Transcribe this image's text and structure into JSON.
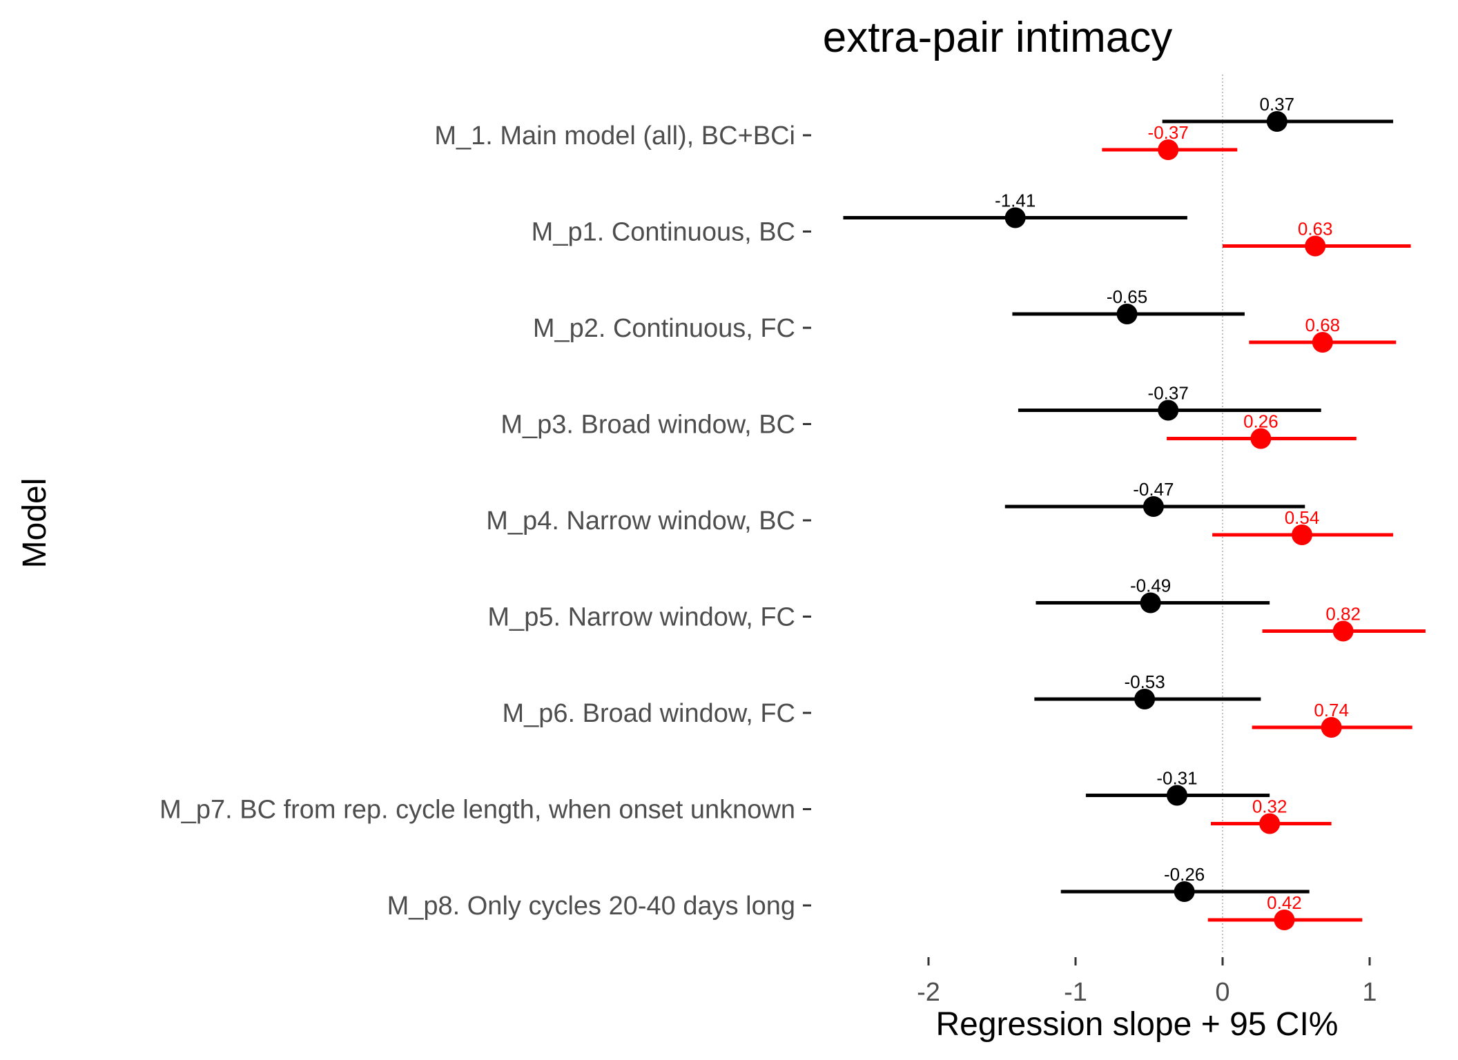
{
  "chart_data": {
    "type": "forest",
    "title": "extra-pair intimacy",
    "xlabel": "Regression slope + 95 CI%",
    "ylabel": "Model",
    "xlim": [
      -2.5,
      1.35
    ],
    "xticks": [
      -2,
      -1,
      0,
      1
    ],
    "xtick_labels": [
      "-2",
      "-1",
      "0",
      "1"
    ],
    "reference_line": 0,
    "grid": false,
    "categories": [
      "M_1. Main model (all), BC+BCi",
      "M_p1. Continuous, BC",
      "M_p2. Continuous, FC",
      "M_p3. Broad window, BC",
      "M_p4. Narrow window, BC",
      "M_p5. Narrow window, FC",
      "M_p6. Broad window, FC",
      "M_p7. BC from rep. cycle length, when onset unknown",
      "M_p8. Only cycles 20-40 days long"
    ],
    "series": [
      {
        "color": "#000000",
        "estimates": [
          0.37,
          -1.41,
          -0.65,
          -0.37,
          -0.47,
          -0.49,
          -0.53,
          -0.31,
          -0.26
        ],
        "labels": [
          "0.37",
          "-1.41",
          "-0.65",
          "-0.37",
          "-0.47",
          "-0.49",
          "-0.53",
          "-0.31",
          "-0.26"
        ],
        "ci_low": [
          -0.41,
          -2.58,
          -1.43,
          -1.39,
          -1.48,
          -1.27,
          -1.28,
          -0.93,
          -1.1
        ],
        "ci_high": [
          1.16,
          -0.24,
          0.15,
          0.67,
          0.56,
          0.32,
          0.26,
          0.32,
          0.59
        ]
      },
      {
        "color": "#ff0000",
        "estimates": [
          -0.37,
          0.63,
          0.68,
          0.26,
          0.54,
          0.82,
          0.74,
          0.32,
          0.42
        ],
        "labels": [
          "-0.37",
          "0.63",
          "0.68",
          "0.26",
          "0.54",
          "0.82",
          "0.74",
          "0.32",
          "0.42"
        ],
        "ci_low": [
          -0.82,
          0.0,
          0.18,
          -0.38,
          -0.07,
          0.27,
          0.2,
          -0.08,
          -0.1
        ],
        "ci_high": [
          0.1,
          1.28,
          1.18,
          0.91,
          1.16,
          1.38,
          1.29,
          0.74,
          0.95
        ]
      }
    ]
  }
}
